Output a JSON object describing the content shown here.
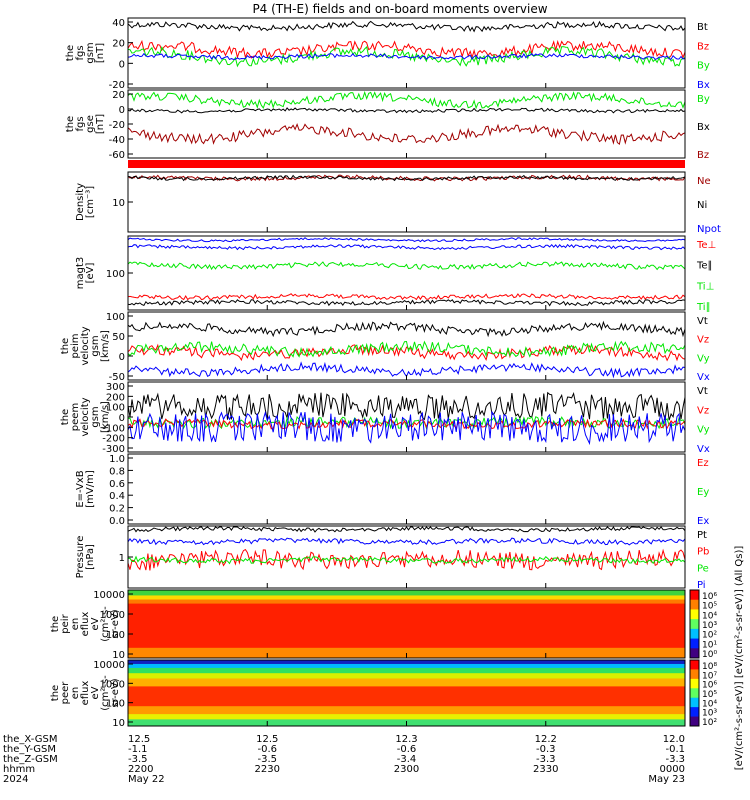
{
  "title": "P4 (TH-E) fields and on-board moments overview",
  "colors": {
    "black": "#000000",
    "red": "#ff0000",
    "darkred": "#a00000",
    "green": "#00e600",
    "blue": "#0000ff"
  },
  "colorbar_ticks_top": [
    "10⁶",
    "10⁵",
    "10⁴",
    "10³",
    "10²",
    "10¹",
    "10⁰"
  ],
  "colorbar_ticks_bottom": [
    "10⁸",
    "10⁷",
    "10⁶",
    "10⁵",
    "10⁴",
    "10³",
    "10²"
  ],
  "colorbar_label": "[eV/(cm²-s-sr-eV)] [eV/(cm²-s-sr-eV)] (All Qs)]",
  "panels": [
    {
      "ylabel": [
        "the",
        "fgs",
        "gsm",
        "[nT]"
      ],
      "ticks": [
        "40",
        "20",
        "0",
        "-20"
      ],
      "legend": [
        [
          "Bt",
          "black"
        ],
        [
          "Bz",
          "red"
        ],
        [
          "By",
          "green"
        ],
        [
          "Bx",
          "blue"
        ]
      ]
    },
    {
      "ylabel": [
        "the",
        "fgs",
        "gse",
        "[nT]"
      ],
      "ticks": [
        "20",
        "0",
        "-20",
        "-40",
        "-60"
      ],
      "legend": [
        [
          "By",
          "green"
        ],
        [
          "Bx",
          "black"
        ],
        [
          "Bz",
          "darkred"
        ]
      ]
    },
    {
      "ylabel": [
        "Density",
        "[cm⁻³]"
      ],
      "ticks": [
        "10"
      ],
      "legend": [
        [
          "Ne",
          "darkred"
        ],
        [
          "Ni",
          "black"
        ],
        [
          "Npot",
          "blue"
        ]
      ]
    },
    {
      "ylabel": [
        "magt3",
        "[eV]"
      ],
      "ticks": [
        "100"
      ],
      "legend": [
        [
          "Te⊥",
          "red"
        ],
        [
          "Te∥",
          "black"
        ],
        [
          "Ti⊥",
          "green"
        ],
        [
          "Ti∥",
          "green"
        ]
      ]
    },
    {
      "ylabel": [
        "the",
        "peim",
        "velocity",
        "gsm",
        "[km/s]"
      ],
      "ticks": [
        "100",
        "50",
        "0",
        "-50"
      ],
      "legend": [
        [
          "Vt",
          "black"
        ],
        [
          "Vz",
          "red"
        ],
        [
          "Vy",
          "green"
        ],
        [
          "Vx",
          "blue"
        ]
      ]
    },
    {
      "ylabel": [
        "the",
        "peem",
        "velocity",
        "gsm",
        "[km/s]"
      ],
      "ticks": [
        "300",
        "200",
        "100",
        "0",
        "-100",
        "-200",
        "-300"
      ],
      "legend": [
        [
          "Vt",
          "black"
        ],
        [
          "Vz",
          "red"
        ],
        [
          "Vy",
          "green"
        ],
        [
          "Vx",
          "blue"
        ]
      ]
    },
    {
      "ylabel": [
        "E=-VxB",
        "[mV/m]"
      ],
      "ticks": [
        "1.0",
        "0.8",
        "0.6",
        "0.4",
        "0.2",
        "0.0"
      ],
      "legend": [
        [
          "Ez",
          "red"
        ],
        [
          "Ey",
          "green"
        ],
        [
          "Ex",
          "blue"
        ]
      ]
    },
    {
      "ylabel": [
        "Pressure",
        "[nPa]"
      ],
      "ticks": [
        "1"
      ],
      "legend": [
        [
          "Pt",
          "black"
        ],
        [
          "Pb",
          "red"
        ],
        [
          "Pe",
          "green"
        ],
        [
          "Pi",
          "blue"
        ]
      ]
    },
    {
      "ylabel": [
        "the",
        "peir",
        "en",
        "eflux",
        "eV",
        "(cm²-s-",
        "sr-eV)"
      ],
      "ticks": [
        "10000",
        "1000",
        "100",
        "10"
      ],
      "legend": []
    },
    {
      "ylabel": [
        "the",
        "peer",
        "en",
        "eflux",
        "eV",
        "(cm²-s-",
        "sr-eV)"
      ],
      "ticks": [
        "10000",
        "1000",
        "100",
        "10"
      ],
      "legend": []
    }
  ],
  "x_rows": [
    {
      "label": "the_X-GSM",
      "values": [
        "12.5",
        "12.5",
        "12.3",
        "12.2",
        "12.0"
      ]
    },
    {
      "label": "the_Y-GSM",
      "values": [
        "-1.1",
        "-0.6",
        "-0.6",
        "-0.3",
        "-0.1"
      ]
    },
    {
      "label": "the_Z-GSM",
      "values": [
        "-3.5",
        "-3.5",
        "-3.4",
        "-3.3",
        "-3.3"
      ]
    },
    {
      "label": "hhmm",
      "values": [
        "2200",
        "2230",
        "2300",
        "2330",
        "0000"
      ]
    },
    {
      "label": "2024",
      "values": [
        "May 22",
        "",
        "",
        "",
        "May 23"
      ]
    }
  ]
}
